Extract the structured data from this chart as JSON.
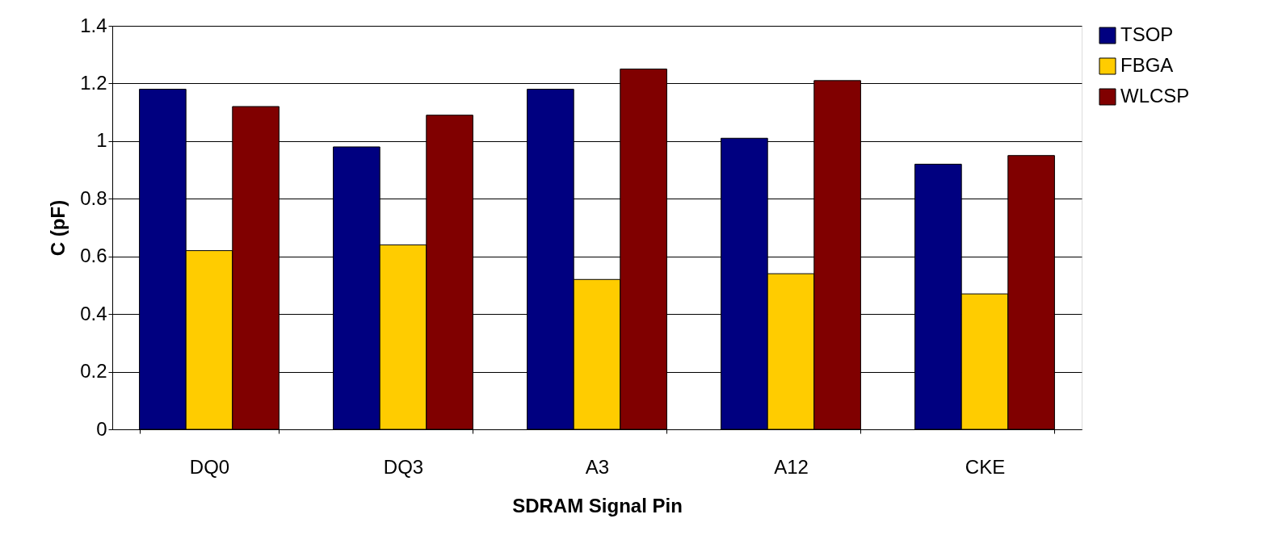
{
  "chart_data": {
    "type": "bar",
    "xlabel": "SDRAM Signal Pin",
    "ylabel": "C (pF)",
    "categories": [
      "DQ0",
      "DQ3",
      "A3",
      "A12",
      "CKE"
    ],
    "series": [
      {
        "name": "TSOP",
        "color": "#000080",
        "values": [
          1.18,
          0.98,
          1.18,
          1.01,
          0.92
        ]
      },
      {
        "name": "FBGA",
        "color": "#ffcc00",
        "values": [
          0.62,
          0.64,
          0.52,
          0.54,
          0.47
        ]
      },
      {
        "name": "WLCSP",
        "color": "#800000",
        "values": [
          1.12,
          1.09,
          1.25,
          1.21,
          0.95
        ]
      }
    ],
    "ylim": [
      0,
      1.4
    ],
    "yticks": [
      0,
      0.2,
      0.4,
      0.6,
      0.8,
      1,
      1.2,
      1.4
    ],
    "grid": "y",
    "legend": "right"
  }
}
